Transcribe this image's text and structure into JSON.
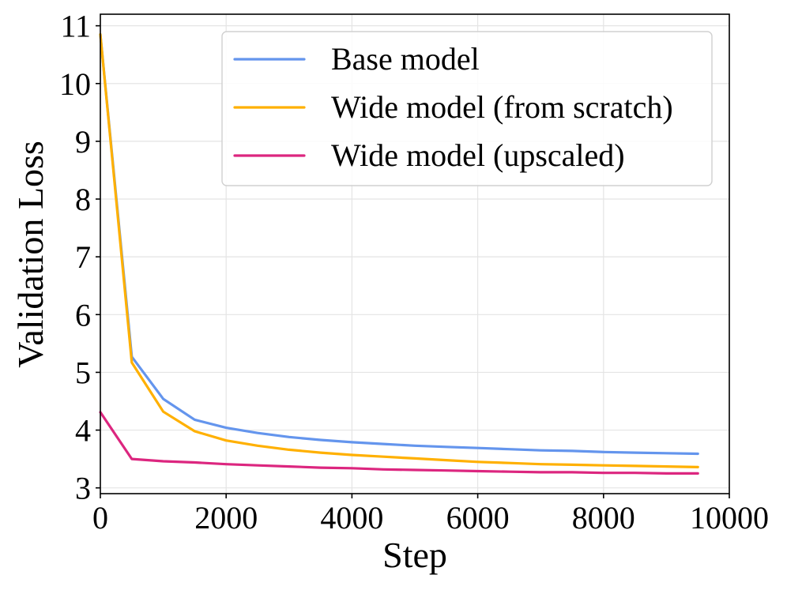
{
  "chart_data": {
    "type": "line",
    "title": "",
    "xlabel": "Step",
    "ylabel": "Validation Loss",
    "xlim": [
      0,
      10000
    ],
    "ylim": [
      2.9,
      11.2
    ],
    "xticks": [
      0,
      2000,
      4000,
      6000,
      8000,
      10000
    ],
    "xtick_labels": [
      "0",
      "2000",
      "4000",
      "6000",
      "8000",
      "10000"
    ],
    "yticks": [
      3,
      4,
      5,
      6,
      7,
      8,
      9,
      10,
      11
    ],
    "ytick_labels": [
      "3",
      "4",
      "5",
      "6",
      "7",
      "8",
      "9",
      "10",
      "11"
    ],
    "grid": true,
    "legend_position": "top-right",
    "series": [
      {
        "name": "Base model",
        "color": "#6495ed",
        "x": [
          0,
          500,
          1000,
          1500,
          2000,
          2500,
          3000,
          3500,
          4000,
          4500,
          5000,
          5500,
          6000,
          6500,
          7000,
          7500,
          8000,
          8500,
          9000,
          9500
        ],
        "y": [
          10.85,
          5.27,
          4.54,
          4.18,
          4.04,
          3.95,
          3.88,
          3.83,
          3.79,
          3.76,
          3.73,
          3.71,
          3.69,
          3.67,
          3.65,
          3.64,
          3.62,
          3.61,
          3.6,
          3.59
        ]
      },
      {
        "name": "Wide model (from scratch)",
        "color": "#ffb000",
        "x": [
          0,
          500,
          1000,
          1500,
          2000,
          2500,
          3000,
          3500,
          4000,
          4500,
          5000,
          5500,
          6000,
          6500,
          7000,
          7500,
          8000,
          8500,
          9000,
          9500
        ],
        "y": [
          10.85,
          5.17,
          4.32,
          3.98,
          3.82,
          3.73,
          3.66,
          3.61,
          3.57,
          3.54,
          3.51,
          3.48,
          3.45,
          3.43,
          3.41,
          3.4,
          3.39,
          3.38,
          3.37,
          3.36
        ]
      },
      {
        "name": "Wide model (upscaled)",
        "color": "#dc267f",
        "x": [
          0,
          500,
          1000,
          1500,
          2000,
          2500,
          3000,
          3500,
          4000,
          4500,
          5000,
          5500,
          6000,
          6500,
          7000,
          7500,
          8000,
          8500,
          9000,
          9500
        ],
        "y": [
          4.31,
          3.5,
          3.46,
          3.44,
          3.41,
          3.39,
          3.37,
          3.35,
          3.34,
          3.32,
          3.31,
          3.3,
          3.29,
          3.28,
          3.27,
          3.27,
          3.26,
          3.26,
          3.25,
          3.25
        ]
      }
    ]
  }
}
